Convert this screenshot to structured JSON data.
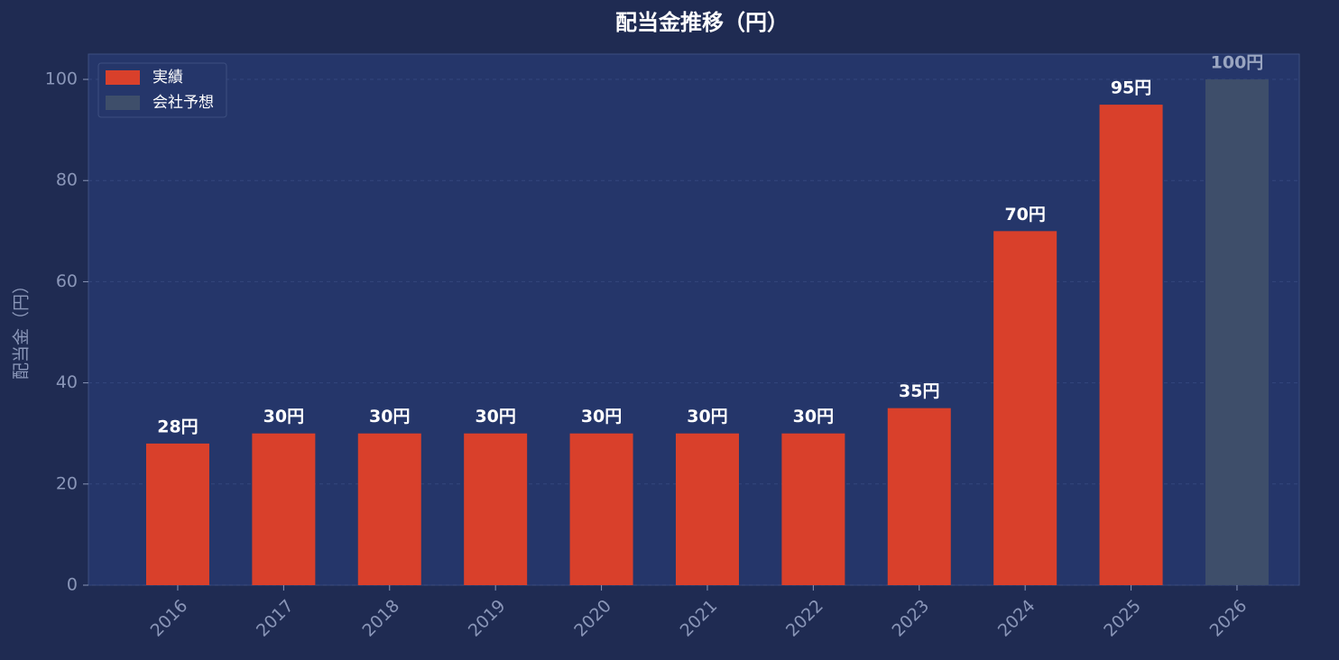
{
  "chart_data": {
    "type": "bar",
    "title": "配当金推移（円）",
    "y_label": "配当金（円）",
    "categories": [
      "2016",
      "2017",
      "2018",
      "2019",
      "2020",
      "2021",
      "2022",
      "2023",
      "2024",
      "2025",
      "2026"
    ],
    "series": [
      {
        "name": "実績",
        "color": "#d9402b",
        "values": [
          28,
          30,
          30,
          30,
          30,
          30,
          30,
          35,
          70,
          95,
          null
        ],
        "value_labels": [
          "28円",
          "30円",
          "30円",
          "30円",
          "30円",
          "30円",
          "30円",
          "35円",
          "70円",
          "95円",
          null
        ]
      },
      {
        "name": "会社予想",
        "color": "#3e4e6a",
        "values": [
          null,
          null,
          null,
          null,
          null,
          null,
          null,
          null,
          null,
          null,
          100
        ],
        "value_labels": [
          null,
          null,
          null,
          null,
          null,
          null,
          null,
          null,
          null,
          null,
          "100円"
        ]
      }
    ],
    "ylim": [
      0,
      105
    ],
    "yticks": [
      0,
      20,
      40,
      60,
      80,
      100
    ],
    "grid": true,
    "legend": "upper left"
  }
}
